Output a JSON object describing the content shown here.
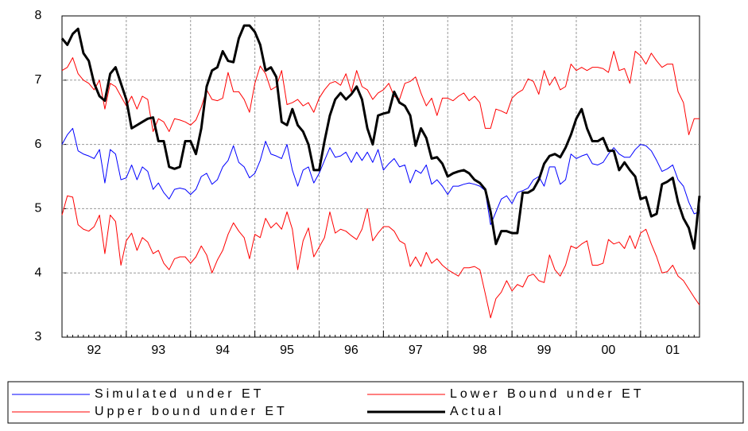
{
  "chart_data": {
    "type": "line",
    "categories": [
      null,
      null,
      null,
      null,
      null,
      null,
      "92",
      null,
      null,
      null,
      null,
      null,
      null,
      null,
      null,
      null,
      null,
      null,
      "93",
      null,
      null,
      null,
      null,
      null,
      null,
      null,
      null,
      null,
      null,
      null,
      "94",
      null,
      null,
      null,
      null,
      null,
      null,
      null,
      null,
      null,
      null,
      null,
      "95",
      null,
      null,
      null,
      null,
      null,
      null,
      null,
      null,
      null,
      null,
      null,
      "96",
      null,
      null,
      null,
      null,
      null,
      null,
      null,
      null,
      null,
      null,
      null,
      "97",
      null,
      null,
      null,
      null,
      null,
      null,
      null,
      null,
      null,
      null,
      null,
      "98",
      null,
      null,
      null,
      null,
      null,
      null,
      null,
      null,
      null,
      null,
      null,
      "99",
      null,
      null,
      null,
      null,
      null,
      null,
      null,
      null,
      null,
      null,
      null,
      "00",
      null,
      null,
      null,
      null,
      null,
      null,
      null,
      null,
      null,
      null,
      null,
      "01",
      null,
      null,
      null,
      null,
      null
    ],
    "ylim": [
      3,
      8
    ],
    "yticks": [
      3,
      4,
      5,
      6,
      7,
      8
    ],
    "grid": true,
    "legend": "bottom",
    "series": [
      {
        "name": "Simulated under ET",
        "color": "#0000ff",
        "width": 1,
        "values": [
          6.0,
          6.15,
          6.25,
          5.9,
          5.85,
          5.82,
          5.78,
          5.92,
          5.4,
          5.92,
          5.85,
          5.45,
          5.48,
          5.68,
          5.45,
          5.65,
          5.58,
          5.3,
          5.4,
          5.25,
          5.15,
          5.3,
          5.32,
          5.3,
          5.22,
          5.3,
          5.5,
          5.55,
          5.38,
          5.45,
          5.65,
          5.75,
          5.98,
          5.72,
          5.65,
          5.48,
          5.55,
          5.75,
          6.05,
          5.85,
          5.82,
          5.78,
          6.0,
          5.6,
          5.35,
          5.6,
          5.65,
          5.4,
          5.55,
          5.75,
          5.95,
          5.8,
          5.82,
          5.88,
          5.72,
          5.88,
          5.75,
          5.88,
          5.72,
          5.92,
          5.6,
          5.7,
          5.78,
          5.65,
          5.68,
          5.4,
          5.6,
          5.55,
          5.68,
          5.38,
          5.45,
          5.35,
          5.22,
          5.35,
          5.35,
          5.38,
          5.4,
          5.38,
          5.35,
          5.28,
          4.75,
          4.95,
          5.15,
          5.2,
          5.08,
          5.25,
          5.28,
          5.32,
          5.45,
          5.5,
          5.35,
          5.65,
          5.65,
          5.38,
          5.45,
          5.85,
          5.78,
          5.82,
          5.85,
          5.7,
          5.68,
          5.72,
          5.85,
          5.95,
          5.85,
          5.8,
          5.8,
          5.92,
          6.0,
          5.98,
          5.9,
          5.75,
          5.58,
          5.62,
          5.68,
          5.45,
          5.35,
          5.1,
          4.92,
          4.95
        ]
      },
      {
        "name": "Lower Bound under ET",
        "color": "#ff0000",
        "width": 1,
        "values": [
          4.9,
          5.2,
          5.18,
          4.75,
          4.68,
          4.65,
          4.72,
          4.9,
          4.3,
          4.9,
          4.8,
          4.12,
          4.5,
          4.62,
          4.35,
          4.55,
          4.48,
          4.3,
          4.35,
          4.15,
          4.05,
          4.22,
          4.25,
          4.25,
          4.15,
          4.25,
          4.42,
          4.28,
          4.0,
          4.2,
          4.35,
          4.6,
          4.78,
          4.65,
          4.55,
          4.22,
          4.6,
          4.55,
          4.85,
          4.7,
          4.78,
          4.68,
          4.95,
          4.68,
          4.05,
          4.5,
          4.7,
          4.25,
          4.4,
          4.55,
          4.95,
          4.62,
          4.68,
          4.65,
          4.58,
          4.52,
          4.68,
          5.0,
          4.5,
          4.62,
          4.72,
          4.72,
          4.65,
          4.5,
          4.45,
          4.1,
          4.25,
          4.1,
          4.32,
          4.15,
          4.22,
          4.12,
          4.05,
          4.0,
          3.95,
          4.08,
          4.08,
          4.1,
          4.05,
          3.68,
          3.3,
          3.6,
          3.7,
          3.88,
          3.72,
          3.82,
          3.78,
          3.95,
          3.98,
          3.88,
          3.85,
          4.28,
          4.05,
          3.95,
          4.12,
          4.42,
          4.38,
          4.45,
          4.5,
          4.12,
          4.12,
          4.15,
          4.52,
          4.45,
          4.48,
          4.38,
          4.58,
          4.38,
          4.62,
          4.68,
          4.45,
          4.25,
          4.0,
          4.02,
          4.12,
          3.95,
          3.88,
          3.75,
          3.62,
          3.5
        ]
      },
      {
        "name": "Upper bound under ET",
        "color": "#ff0000",
        "width": 1,
        "values": [
          7.15,
          7.2,
          7.35,
          7.1,
          7.0,
          6.95,
          6.85,
          7.0,
          6.55,
          6.95,
          6.9,
          6.75,
          6.6,
          6.75,
          6.55,
          6.75,
          6.7,
          6.2,
          6.4,
          6.35,
          6.2,
          6.4,
          6.38,
          6.35,
          6.3,
          6.38,
          6.58,
          6.85,
          6.7,
          6.68,
          6.72,
          7.12,
          6.82,
          6.82,
          6.7,
          6.5,
          6.95,
          7.22,
          7.1,
          6.85,
          6.9,
          7.15,
          6.62,
          6.65,
          6.7,
          6.6,
          6.65,
          6.5,
          6.72,
          6.85,
          6.95,
          6.98,
          6.92,
          7.1,
          6.82,
          7.15,
          6.9,
          6.85,
          6.7,
          6.8,
          6.85,
          6.95,
          6.75,
          6.7,
          6.95,
          6.98,
          7.05,
          6.8,
          6.6,
          6.72,
          6.45,
          6.72,
          6.72,
          6.68,
          6.75,
          6.8,
          6.68,
          6.75,
          6.65,
          6.25,
          6.25,
          6.55,
          6.52,
          6.48,
          6.72,
          6.8,
          6.85,
          7.02,
          6.98,
          6.78,
          7.15,
          6.92,
          7.05,
          6.85,
          6.9,
          7.25,
          7.15,
          7.2,
          7.15,
          7.2,
          7.2,
          7.18,
          7.12,
          7.45,
          7.15,
          7.18,
          6.95,
          7.45,
          7.38,
          7.25,
          7.42,
          7.3,
          7.2,
          7.25,
          7.25,
          6.82,
          6.65,
          6.15,
          6.4,
          6.4
        ]
      },
      {
        "name": "Actual",
        "color": "#000000",
        "width": 3,
        "values": [
          7.65,
          7.55,
          7.72,
          7.8,
          7.42,
          7.3,
          6.95,
          6.75,
          6.68,
          7.1,
          7.2,
          6.95,
          6.7,
          6.25,
          6.3,
          6.35,
          6.4,
          6.42,
          6.05,
          6.05,
          5.65,
          5.62,
          5.65,
          6.05,
          6.05,
          5.85,
          6.25,
          6.9,
          7.15,
          7.2,
          7.45,
          7.3,
          7.28,
          7.65,
          7.85,
          7.85,
          7.75,
          7.55,
          7.15,
          7.2,
          7.05,
          6.35,
          6.3,
          6.55,
          6.3,
          6.2,
          6.0,
          5.6,
          5.6,
          6.05,
          6.45,
          6.7,
          6.8,
          6.7,
          6.78,
          6.9,
          6.7,
          6.25,
          6.0,
          6.45,
          6.48,
          6.5,
          6.82,
          6.65,
          6.6,
          6.45,
          5.98,
          6.25,
          6.1,
          5.78,
          5.8,
          5.7,
          5.5,
          5.55,
          5.58,
          5.6,
          5.55,
          5.45,
          5.4,
          5.3,
          4.95,
          4.45,
          4.65,
          4.65,
          4.62,
          4.62,
          5.25,
          5.25,
          5.3,
          5.45,
          5.7,
          5.82,
          5.85,
          5.8,
          5.95,
          6.15,
          6.4,
          6.55,
          6.25,
          6.05,
          6.05,
          6.1,
          5.9,
          5.9,
          5.6,
          5.72,
          5.6,
          5.5,
          5.15,
          5.18,
          4.88,
          4.92,
          5.38,
          5.42,
          5.48,
          5.1,
          4.85,
          4.7,
          4.38,
          5.2
        ]
      }
    ]
  }
}
